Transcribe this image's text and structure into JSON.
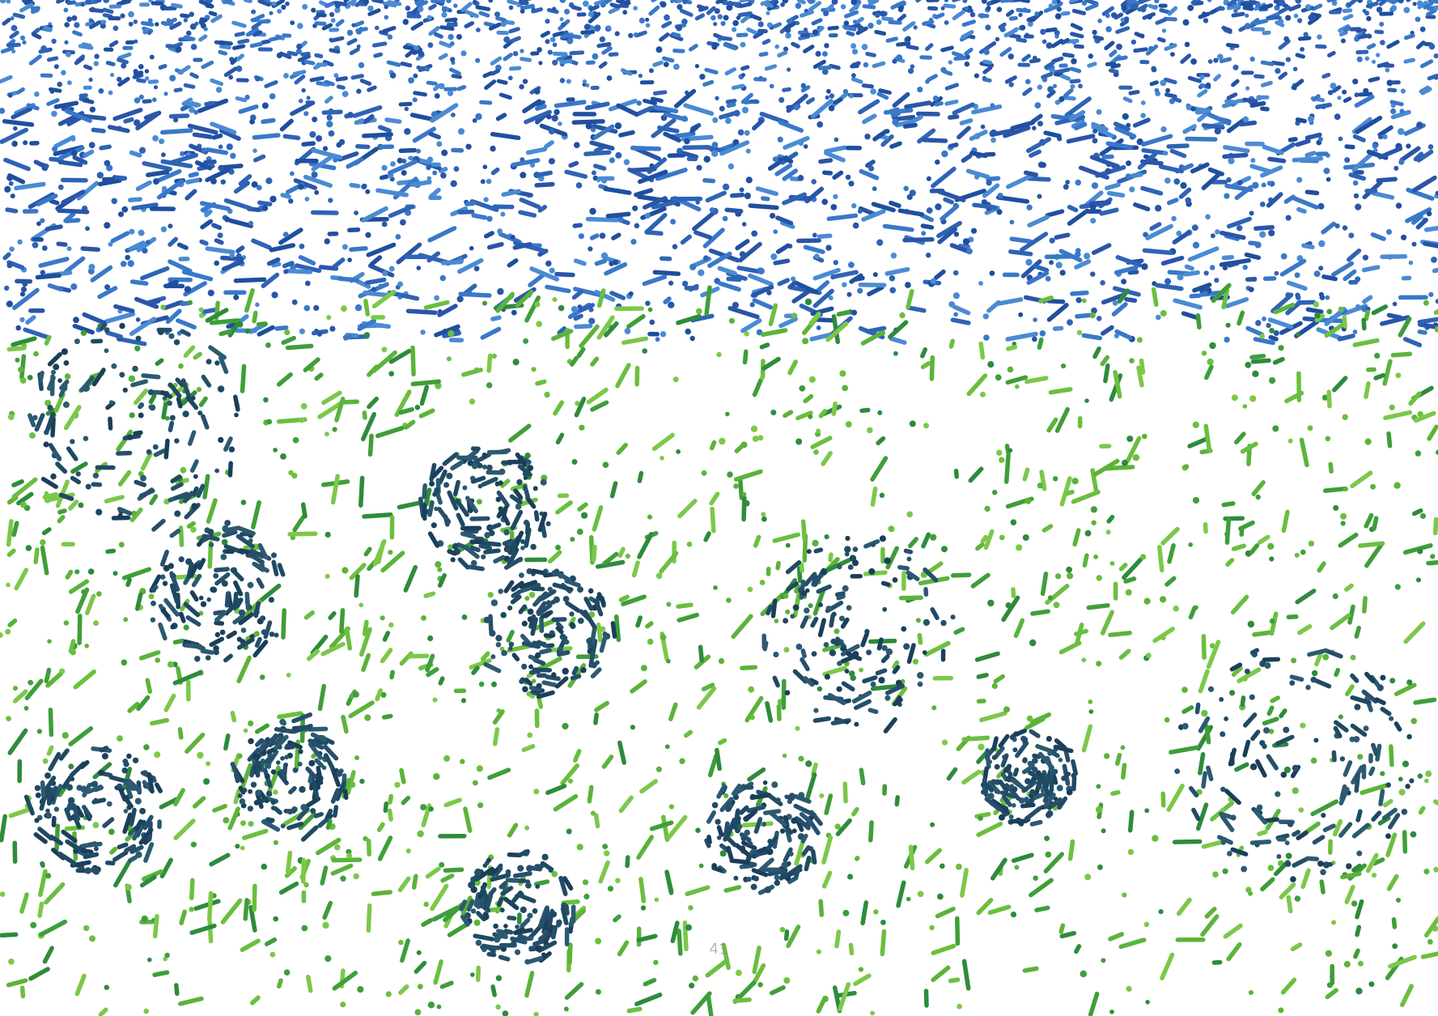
{
  "page": {
    "page_number": "41"
  }
}
